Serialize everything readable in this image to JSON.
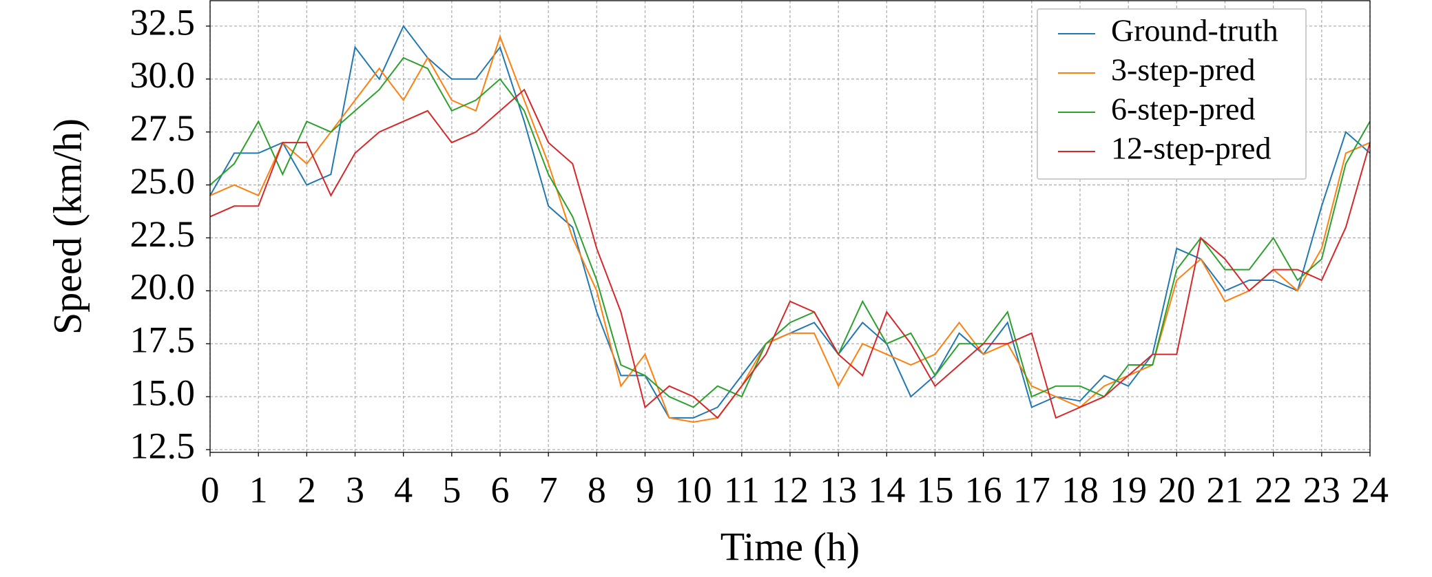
{
  "chart_data": {
    "type": "line",
    "x_label": "Time (h)",
    "y_label": "Speed (km/h)",
    "x": [
      0,
      0.5,
      1,
      1.5,
      2,
      2.5,
      3,
      3.5,
      4,
      4.5,
      5,
      5.5,
      6,
      6.5,
      7,
      7.5,
      8,
      8.5,
      9,
      9.5,
      10,
      10.5,
      11,
      11.5,
      12,
      12.5,
      13,
      13.5,
      14,
      14.5,
      15,
      15.5,
      16,
      16.5,
      17,
      17.5,
      18,
      18.5,
      19,
      19.5,
      20,
      20.5,
      21,
      21.5,
      22,
      22.5,
      23,
      23.5,
      24
    ],
    "series": [
      {
        "name": "Ground-truth",
        "color": "#1f77b4",
        "values": [
          24.5,
          26.5,
          26.5,
          27,
          25,
          25.5,
          31.5,
          30,
          32.5,
          31,
          30,
          30,
          31.5,
          28,
          24,
          23,
          19,
          16,
          16,
          14,
          14,
          14.5,
          16,
          17.5,
          18,
          18.5,
          17,
          18.5,
          17.5,
          15,
          16,
          18,
          17,
          18.5,
          14.5,
          15,
          14.8,
          16,
          15.5,
          17,
          22,
          21.5,
          20,
          20.5,
          20.5,
          20,
          24,
          27.5,
          26.5
        ]
      },
      {
        "name": "3-step-pred",
        "color": "#ff7f0e",
        "values": [
          24.5,
          25,
          24.5,
          27,
          26,
          27.5,
          29,
          30.5,
          29,
          31,
          29,
          28.5,
          32,
          29,
          26,
          22.5,
          20,
          15.5,
          17,
          14,
          13.8,
          14,
          15.5,
          17.5,
          18,
          18,
          15.5,
          17.5,
          17,
          16.5,
          17,
          18.5,
          17,
          17.5,
          15.5,
          15,
          14.5,
          15.5,
          16,
          16.5,
          20.5,
          21.5,
          19.5,
          20,
          21,
          20,
          22,
          26.5,
          27
        ]
      },
      {
        "name": "6-step-pred",
        "color": "#2ca02c",
        "values": [
          25,
          26,
          28,
          25.5,
          28,
          27.5,
          28.5,
          29.5,
          31,
          30.5,
          28.5,
          29,
          30,
          28.5,
          25.5,
          23.5,
          20.5,
          16.5,
          16,
          15,
          14.5,
          15.5,
          15,
          17.5,
          18.5,
          19,
          17,
          19.5,
          17.5,
          18,
          16,
          17.5,
          17.5,
          19,
          15,
          15.5,
          15.5,
          15,
          16.5,
          16.5,
          21,
          22.5,
          21,
          21,
          22.5,
          20.5,
          21.5,
          26,
          28
        ]
      },
      {
        "name": "12-step-pred",
        "color": "#d62728",
        "values": [
          23.5,
          24,
          24,
          27,
          27,
          24.5,
          26.5,
          27.5,
          28,
          28.5,
          27,
          27.5,
          28.5,
          29.5,
          27,
          26,
          22,
          19,
          14.5,
          15.5,
          15,
          14,
          15.5,
          17,
          19.5,
          19,
          17,
          16,
          19,
          17.5,
          15.5,
          16.5,
          17.5,
          17.5,
          18,
          14,
          14.5,
          15,
          16,
          17,
          17,
          22.5,
          21.5,
          20,
          21,
          21,
          20.5,
          23,
          27
        ]
      }
    ],
    "xlim": [
      0,
      24
    ],
    "xticks": [
      0,
      1,
      2,
      3,
      4,
      5,
      6,
      7,
      8,
      9,
      10,
      11,
      12,
      13,
      14,
      15,
      16,
      17,
      18,
      19,
      20,
      21,
      22,
      23,
      24
    ],
    "ylim": [
      12.37,
      33.7
    ],
    "yticks": [
      12.5,
      {
        "value": 15,
        "label": "15.0"
      },
      17.5,
      {
        "value": 20,
        "label": "20.0"
      },
      22.5,
      {
        "value": 25,
        "label": "25.0"
      },
      27.5,
      {
        "value": 30,
        "label": "30.0"
      },
      32.5
    ],
    "grid": true,
    "legend": "upper right"
  }
}
